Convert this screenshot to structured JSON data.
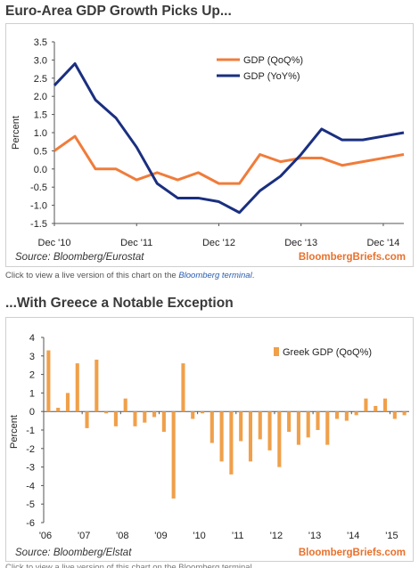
{
  "colors": {
    "orange": "#f07c3b",
    "blue": "#1a2f80",
    "bar": "#f0a04a"
  },
  "chart1": {
    "title": "Euro-Area GDP Growth Picks Up...",
    "source": "Source: Bloomberg/Eurostat",
    "brand": "BloombergBriefs.com",
    "note_prefix": "Click to view a live version of this chart on the ",
    "note_link": "Bloomberg terminal",
    "note_suffix": "."
  },
  "chart2": {
    "title": "...With Greece a Notable Exception",
    "source": "Source: Bloomberg/Elstat",
    "brand": "BloombergBriefs.com",
    "note": "Click to view a live version of this chart on the Bloomberg terminal."
  },
  "chart_data": [
    {
      "type": "line",
      "title": "Euro-Area GDP Growth Picks Up...",
      "ylabel": "Percent",
      "ylim": [
        -1.5,
        3.5
      ],
      "yticks": [
        "3.5",
        "3.0",
        "2.5",
        "2.0",
        "1.5",
        "1.0",
        "0.5",
        "0.0",
        "-0.5",
        "-1.0",
        "-1.5"
      ],
      "xticks": [
        "Dec '10",
        "Dec '11",
        "Dec '12",
        "Dec '13",
        "Dec '14"
      ],
      "legend_position": "top-right",
      "grid": false,
      "series": [
        {
          "name": "GDP (QoQ%)",
          "color": "#f07c3b",
          "values": [
            0.5,
            0.9,
            0.0,
            0.0,
            -0.3,
            -0.1,
            -0.3,
            -0.1,
            -0.4,
            -0.4,
            0.4,
            0.2,
            0.3,
            0.3,
            0.1,
            0.2,
            0.3,
            0.4
          ]
        },
        {
          "name": "GDP (YoY%)",
          "color": "#1a2f80",
          "values": [
            2.3,
            2.9,
            1.9,
            1.4,
            0.6,
            -0.4,
            -0.8,
            -0.8,
            -0.9,
            -1.2,
            -0.6,
            -0.2,
            0.4,
            1.1,
            0.8,
            0.8,
            0.9,
            1.0
          ]
        }
      ]
    },
    {
      "type": "bar",
      "title": "...With Greece a Notable Exception",
      "ylabel": "Percent",
      "ylim": [
        -6,
        4
      ],
      "yticks": [
        "4",
        "3",
        "2",
        "1",
        "0",
        "-1",
        "-2",
        "-3",
        "-4",
        "-5",
        "-6"
      ],
      "xticks": [
        "'06",
        "'07",
        "'08",
        "'09",
        "'10",
        "'11",
        "'12",
        "'13",
        "'14",
        "'15"
      ],
      "legend_position": "top-right",
      "grid": false,
      "series": [
        {
          "name": "Greek GDP (QoQ%)",
          "color": "#f0a04a",
          "values": [
            3.3,
            0.2,
            1.0,
            2.6,
            -0.9,
            2.8,
            -0.1,
            -0.8,
            0.7,
            -0.8,
            -0.6,
            -0.3,
            -1.1,
            -4.7,
            2.6,
            -0.4,
            -0.1,
            -1.7,
            -2.7,
            -3.4,
            -1.6,
            -2.7,
            -1.5,
            -2.1,
            -3.0,
            -1.1,
            -1.8,
            -1.4,
            -1.0,
            -1.8,
            -0.4,
            -0.5,
            -0.2,
            0.7,
            0.3,
            0.7,
            -0.4,
            -0.2
          ]
        }
      ]
    }
  ]
}
